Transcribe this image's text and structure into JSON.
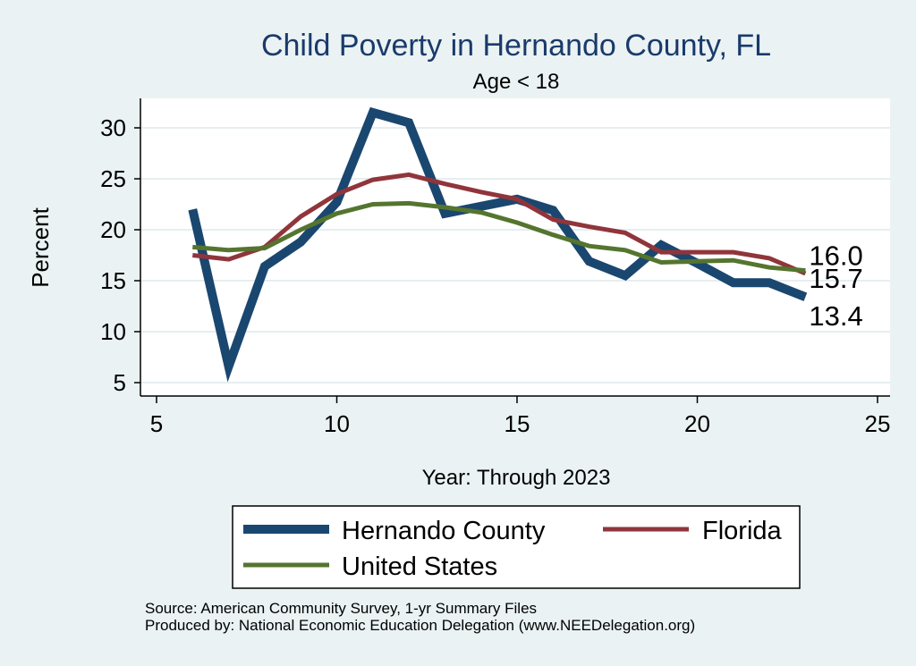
{
  "chart_data": {
    "type": "line",
    "title": "Child Poverty in Hernando County, FL",
    "subtitle": "Age < 18",
    "xlabel": "Year: Through 2023",
    "ylabel": "Percent",
    "xlim": [
      5,
      25
    ],
    "ylim": [
      5,
      32
    ],
    "x_ticks": [
      5,
      10,
      15,
      20,
      25
    ],
    "y_ticks": [
      5,
      10,
      15,
      20,
      25,
      30
    ],
    "grid": true,
    "legend": "bottom",
    "series": [
      {
        "name": "Hernando County",
        "color": "#1a476f",
        "x": [
          6,
          7,
          8,
          9,
          10,
          11,
          12,
          13,
          14,
          15,
          16,
          17,
          18,
          19,
          20,
          21,
          22,
          23
        ],
        "values": [
          22.0,
          6.6,
          16.4,
          18.8,
          22.7,
          31.5,
          30.5,
          21.6,
          22.3,
          23.0,
          21.9,
          16.9,
          15.5,
          18.5,
          16.7,
          14.8,
          14.8,
          13.4
        ]
      },
      {
        "name": "Florida",
        "color": "#90353b",
        "x": [
          6,
          7,
          8,
          9,
          10,
          11,
          12,
          13,
          14,
          15,
          16,
          17,
          18,
          19,
          20,
          21,
          22,
          23
        ],
        "values": [
          17.5,
          17.1,
          18.3,
          21.3,
          23.5,
          24.9,
          25.4,
          24.5,
          23.7,
          23.0,
          21.0,
          20.3,
          19.7,
          17.8,
          17.8,
          17.8,
          17.2,
          15.7
        ]
      },
      {
        "name": "United States",
        "color": "#55752f",
        "x": [
          6,
          7,
          8,
          9,
          10,
          11,
          12,
          13,
          14,
          15,
          16,
          17,
          18,
          19,
          20,
          21,
          22,
          23
        ],
        "values": [
          18.3,
          18.0,
          18.2,
          20.0,
          21.6,
          22.5,
          22.6,
          22.2,
          21.7,
          20.7,
          19.5,
          18.4,
          18.0,
          16.8,
          16.9,
          17.0,
          16.3,
          16.0
        ]
      }
    ],
    "end_labels": [
      "16.0",
      "15.7",
      "13.4"
    ],
    "source": "Source: American Community Survey, 1-yr Summary Files",
    "produced_by": "Produced by: National Economic Education Delegation (www.NEEDelegation.org)"
  }
}
